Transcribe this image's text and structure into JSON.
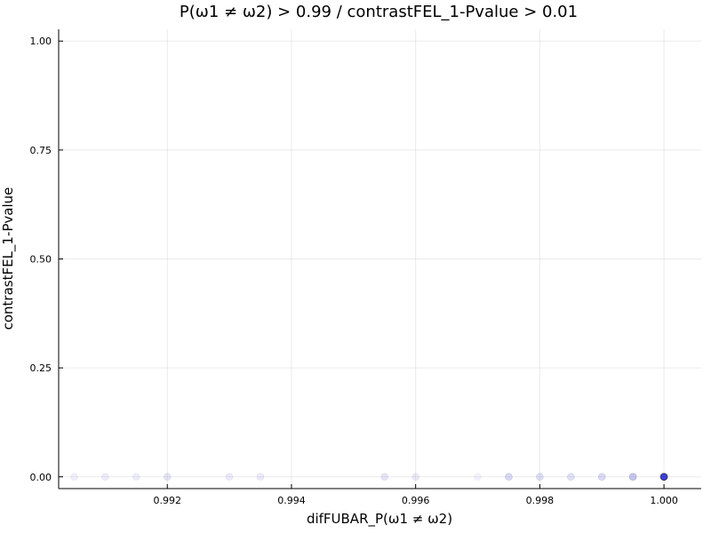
{
  "chart_data": {
    "type": "scatter",
    "title": "P(ω1 ≠ ω2) > 0.99 / contrastFEL_1-Pvalue > 0.01",
    "xlabel": "difFUBAR_P(ω1 ≠ ω2)",
    "ylabel": "contrastFEL_1-Pvalue",
    "xlim": [
      0.99025,
      1.0006
    ],
    "ylim": [
      -0.027,
      1.027
    ],
    "xticks": [
      0.992,
      0.994,
      0.996,
      0.998,
      1.0
    ],
    "xtick_labels": [
      "0.992",
      "0.994",
      "0.996",
      "0.998",
      "1.000"
    ],
    "yticks": [
      0.0,
      0.25,
      0.5,
      0.75,
      1.0
    ],
    "ytick_labels": [
      "0.00",
      "0.25",
      "0.50",
      "0.75",
      "1.00"
    ],
    "grid": true,
    "legend": "none",
    "point_color": "#0000cc",
    "points": [
      {
        "x": 0.9905,
        "y": 0.0,
        "opacity": 0.06
      },
      {
        "x": 0.991,
        "y": 0.0,
        "opacity": 0.07
      },
      {
        "x": 0.9915,
        "y": 0.0,
        "opacity": 0.07
      },
      {
        "x": 0.992,
        "y": 0.0,
        "opacity": 0.1
      },
      {
        "x": 0.993,
        "y": 0.0,
        "opacity": 0.08
      },
      {
        "x": 0.9935,
        "y": 0.0,
        "opacity": 0.08
      },
      {
        "x": 0.9955,
        "y": 0.0,
        "opacity": 0.1
      },
      {
        "x": 0.996,
        "y": 0.0,
        "opacity": 0.08
      },
      {
        "x": 0.997,
        "y": 0.0,
        "opacity": 0.05
      },
      {
        "x": 0.9975,
        "y": 0.0,
        "opacity": 0.15
      },
      {
        "x": 0.998,
        "y": 0.0,
        "opacity": 0.12
      },
      {
        "x": 0.9985,
        "y": 0.0,
        "opacity": 0.12
      },
      {
        "x": 0.999,
        "y": 0.0,
        "opacity": 0.14
      },
      {
        "x": 0.9995,
        "y": 0.0,
        "opacity": 0.22
      },
      {
        "x": 1.0,
        "y": 0.0,
        "opacity": 0.75
      }
    ]
  }
}
